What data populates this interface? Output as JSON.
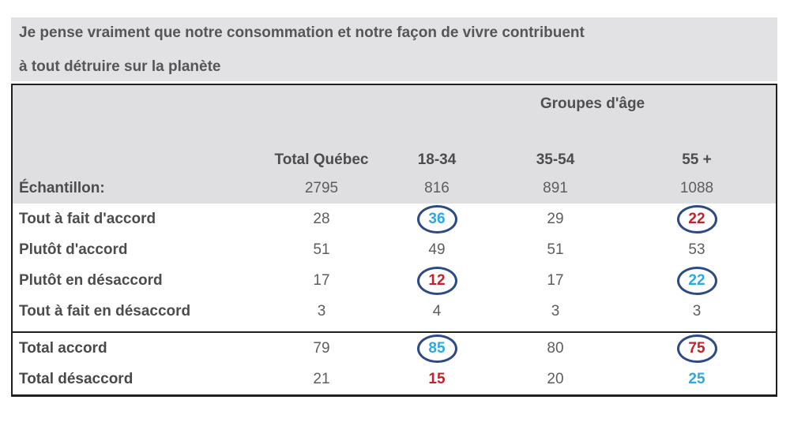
{
  "title": {
    "line1": "Je pense vraiment que notre consommation et notre façon de vivre contribuent",
    "line2": "à tout détruire sur la planète"
  },
  "colors": {
    "title_band_bg": "#e2e1e4",
    "table_header_bg": "#dfdee1",
    "accent_blue": "#29abe2",
    "accent_red": "#c6222c",
    "circle_outline_navy": "#2d4a86",
    "text_dark_gray": "#4c4c4f",
    "value_gray": "#5d5d60"
  },
  "table": {
    "group_header": "Groupes d'âge",
    "columns": [
      "Total Québec",
      "18-34",
      "35-54",
      "55 +"
    ],
    "sample_row": {
      "label": "Échantillon:",
      "values": [
        "2795",
        "816",
        "891",
        "1088"
      ]
    },
    "rows": [
      {
        "label": "Tout à fait d'accord",
        "values": [
          "28",
          "36",
          "29",
          "22"
        ],
        "highlights": [
          null,
          "blue-circled",
          null,
          "red-circled"
        ]
      },
      {
        "label": "Plutôt d'accord",
        "values": [
          "51",
          "49",
          "51",
          "53"
        ],
        "highlights": [
          null,
          null,
          null,
          null
        ]
      },
      {
        "label": "Plutôt en désaccord",
        "values": [
          "17",
          "12",
          "17",
          "22"
        ],
        "highlights": [
          null,
          "red-circled",
          null,
          "blue-circled"
        ]
      },
      {
        "label": "Tout à fait en désaccord",
        "values": [
          "3",
          "4",
          "3",
          "3"
        ],
        "highlights": [
          null,
          null,
          null,
          null
        ]
      }
    ],
    "total_rows": [
      {
        "label": "Total accord",
        "values": [
          "79",
          "85",
          "80",
          "75"
        ],
        "highlights": [
          null,
          "blue-circled",
          null,
          "red-circled"
        ]
      },
      {
        "label": "Total désaccord",
        "values": [
          "21",
          "15",
          "20",
          "25"
        ],
        "highlights": [
          null,
          "red",
          null,
          "blue"
        ]
      }
    ]
  },
  "chart_data": {
    "type": "table",
    "title": "Je pense vraiment que notre consommation et notre façon de vivre contribuent à tout détruire sur la planète",
    "column_group_label": "Groupes d'âge",
    "columns": [
      "Total Québec",
      "18-34",
      "35-54",
      "55 +"
    ],
    "sample_sizes": {
      "label": "Échantillon:",
      "values": [
        2795,
        816,
        891,
        1088
      ]
    },
    "rows": [
      {
        "label": "Tout à fait d'accord",
        "values": [
          28,
          36,
          29,
          22
        ]
      },
      {
        "label": "Plutôt d'accord",
        "values": [
          51,
          49,
          51,
          53
        ]
      },
      {
        "label": "Plutôt en désaccord",
        "values": [
          17,
          12,
          17,
          22
        ]
      },
      {
        "label": "Tout à fait en désaccord",
        "values": [
          3,
          4,
          3,
          3
        ]
      },
      {
        "label": "Total accord",
        "values": [
          79,
          85,
          80,
          75
        ]
      },
      {
        "label": "Total désaccord",
        "values": [
          21,
          15,
          20,
          25
        ]
      }
    ],
    "annotations": "Values 36 (18-34), 22 (55+), 12 (18-34), 22 (55+), 85 (18-34), 75 (55+) are circled in navy; blue text marks significantly high, red text marks significantly low/high contrast figures (15 and 25 colored without circles)."
  }
}
